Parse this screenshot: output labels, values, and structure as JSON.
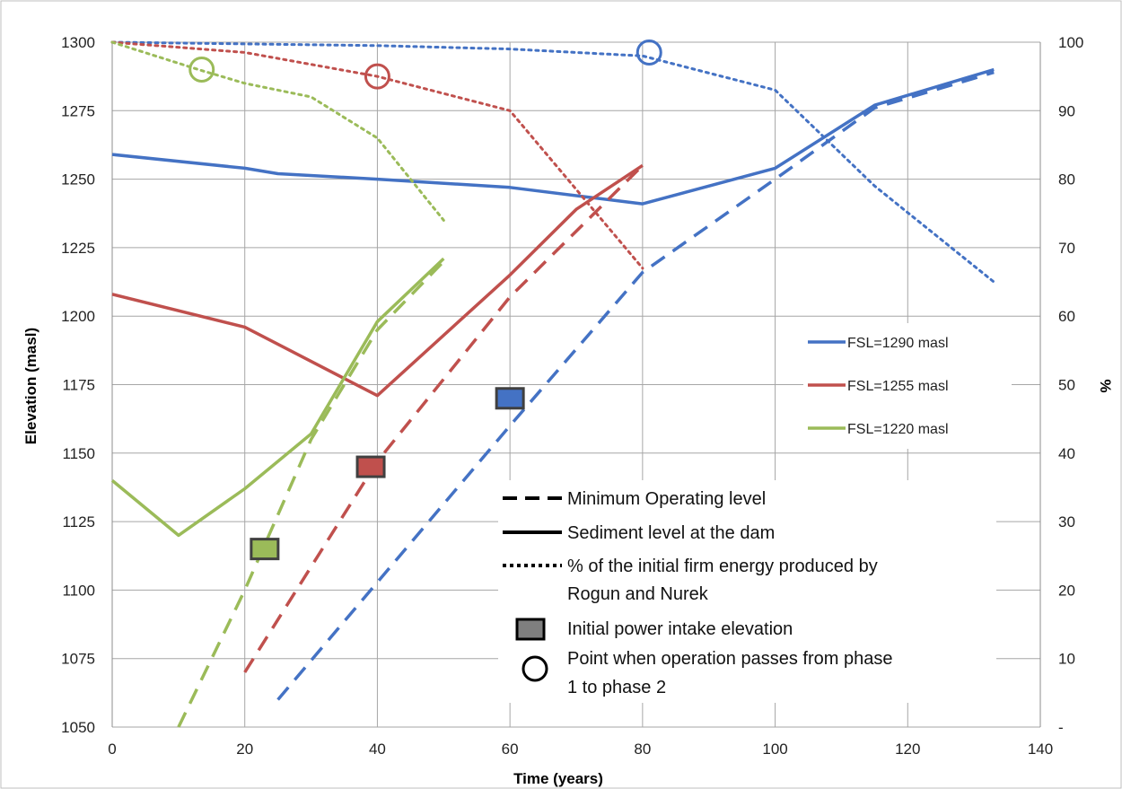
{
  "chart_data": {
    "type": "line",
    "xlabel": "Time (years)",
    "ylabel": "Elevation (masl)",
    "y2label": "%",
    "xlim": [
      0,
      140
    ],
    "ylim": [
      1050,
      1300
    ],
    "y2lim": [
      0,
      100
    ],
    "grid": true,
    "x_ticks": [
      "0",
      "20",
      "40",
      "60",
      "80",
      "100",
      "120",
      "140"
    ],
    "y_ticks": [
      "1050",
      "1075",
      "1100",
      "1125",
      "1150",
      "1175",
      "1200",
      "1225",
      "1250",
      "1275",
      "1300"
    ],
    "y2_ticks": [
      "-",
      "10",
      "20",
      "30",
      "40",
      "50",
      "60",
      "70",
      "80",
      "90",
      "100"
    ],
    "legend_placement": "right",
    "series": [
      {
        "name": "FSL=1290 masl",
        "color": "#4472c4",
        "sediment": [
          [
            0,
            1259
          ],
          [
            20,
            1254
          ],
          [
            25,
            1252
          ],
          [
            40,
            1250
          ],
          [
            60,
            1247
          ],
          [
            80,
            1241
          ],
          [
            100,
            1254
          ],
          [
            115,
            1277
          ],
          [
            133,
            1290
          ]
        ],
        "min_operating": [
          [
            25,
            1060
          ],
          [
            60,
            1160
          ],
          [
            80,
            1216
          ],
          [
            100,
            1250
          ],
          [
            115,
            1276
          ],
          [
            133,
            1289
          ]
        ],
        "energy_pct": [
          [
            0,
            100
          ],
          [
            40,
            99.5
          ],
          [
            60,
            99
          ],
          [
            80,
            98
          ],
          [
            100,
            93
          ],
          [
            115,
            79
          ],
          [
            133,
            65
          ]
        ],
        "initial_intake": [
          60,
          1170
        ],
        "phase_change": [
          81,
          98.5
        ]
      },
      {
        "name": "FSL=1255 masl",
        "color": "#c0504d",
        "sediment": [
          [
            0,
            1208
          ],
          [
            20,
            1196
          ],
          [
            40,
            1171
          ],
          [
            60,
            1215
          ],
          [
            70,
            1239
          ],
          [
            80,
            1255
          ]
        ],
        "min_operating": [
          [
            20,
            1070
          ],
          [
            40,
            1147
          ],
          [
            60,
            1207
          ],
          [
            80,
            1255
          ]
        ],
        "energy_pct": [
          [
            0,
            100
          ],
          [
            20,
            98.5
          ],
          [
            40,
            95
          ],
          [
            60,
            90
          ],
          [
            80,
            67
          ]
        ],
        "initial_intake": [
          39,
          1145
        ],
        "phase_change": [
          40,
          95
        ]
      },
      {
        "name": "FSL=1220 masl",
        "color": "#9bbb59",
        "sediment": [
          [
            0,
            1140
          ],
          [
            10,
            1120
          ],
          [
            20,
            1137
          ],
          [
            30,
            1157
          ],
          [
            40,
            1198
          ],
          [
            50,
            1221
          ]
        ],
        "min_operating": [
          [
            10,
            1050
          ],
          [
            20,
            1100
          ],
          [
            30,
            1155
          ],
          [
            40,
            1195
          ],
          [
            50,
            1220
          ]
        ],
        "energy_pct": [
          [
            0,
            100
          ],
          [
            13,
            96
          ],
          [
            20,
            94
          ],
          [
            30,
            92
          ],
          [
            40,
            86
          ],
          [
            50,
            74
          ]
        ],
        "initial_intake": [
          23,
          1115
        ],
        "phase_change": [
          13.5,
          96
        ]
      }
    ],
    "annotations": {
      "min_operating": "Minimum  Operating level",
      "sediment": "Sediment level at the dam",
      "energy_line1": "% of the initial firm energy produced by",
      "energy_line2": "Rogun and Nurek",
      "intake": "Initial power intake elevation",
      "phase_line1": "Point when operation passes from phase",
      "phase_line2": "1 to phase  2"
    }
  }
}
